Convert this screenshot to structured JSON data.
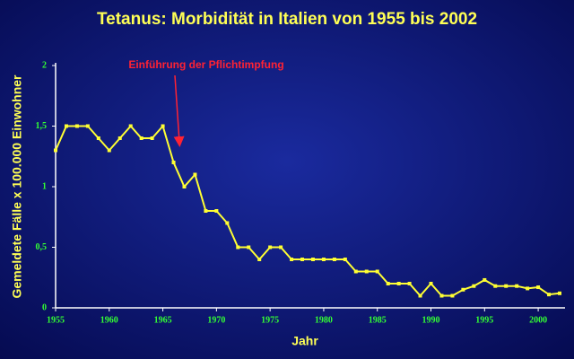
{
  "chart_data": {
    "type": "line",
    "title": "Tetanus: Morbidität in Italien von 1955 bis 2002",
    "x_label": "Jahr",
    "y_label": "Gemeldete Fälle x 100.000 Einwohner",
    "annotation": "Einführung der Pflichtimpfung",
    "x": [
      1955,
      1956,
      1957,
      1958,
      1959,
      1960,
      1961,
      1962,
      1963,
      1964,
      1965,
      1966,
      1967,
      1968,
      1969,
      1970,
      1971,
      1972,
      1973,
      1974,
      1975,
      1976,
      1977,
      1978,
      1979,
      1980,
      1981,
      1982,
      1983,
      1984,
      1985,
      1986,
      1987,
      1988,
      1989,
      1990,
      1991,
      1992,
      1993,
      1994,
      1995,
      1996,
      1997,
      1998,
      1999,
      2000,
      2001,
      2002
    ],
    "series": [
      {
        "color": "#ffff33",
        "values": [
          1.3,
          1.5,
          1.5,
          1.5,
          1.4,
          1.3,
          1.4,
          1.5,
          1.4,
          1.4,
          1.5,
          1.2,
          1.0,
          1.1,
          0.8,
          0.8,
          0.7,
          0.5,
          0.5,
          0.4,
          0.5,
          0.5,
          0.4,
          0.4,
          0.4,
          0.4,
          0.4,
          0.4,
          0.3,
          0.3,
          0.3,
          0.2,
          0.2,
          0.2,
          0.1,
          0.2,
          0.1,
          0.1,
          0.15,
          0.18,
          0.23,
          0.18,
          0.18,
          0.18,
          0.16,
          0.17,
          0.11,
          0.12
        ]
      }
    ],
    "xlim": [
      1955,
      2002
    ],
    "xticks": [
      1955,
      1960,
      1965,
      1970,
      1975,
      1980,
      1985,
      1990,
      1995,
      2000
    ],
    "ylim": [
      0,
      2
    ],
    "yticks": [
      0,
      {
        "value": 0.5,
        "label": "0,5"
      },
      1,
      {
        "value": 1.5,
        "label": "1,5"
      },
      2
    ],
    "grid": false
  }
}
